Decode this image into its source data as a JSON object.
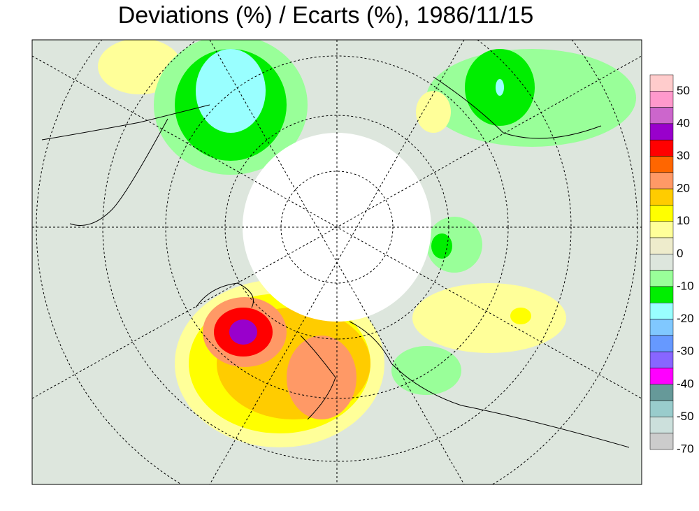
{
  "title": "Deviations (%) / Ecarts (%), 1986/11/15",
  "legend": {
    "labels": [
      "50",
      "40",
      "30",
      "20",
      "10",
      "0",
      "-10",
      "-20",
      "-30",
      "-40",
      "-50",
      "-70"
    ],
    "colors": [
      "#ffcccc",
      "#ff99cc",
      "#cc66cc",
      "#9900cc",
      "#ff0000",
      "#ff6600",
      "#ff9966",
      "#ffcc00",
      "#ffff00",
      "#ffff99",
      "#eeeccc",
      "#dde6dd",
      "#99ff99",
      "#00ee00",
      "#99ffff",
      "#80c8ff",
      "#6699ff",
      "#8866ff",
      "#ff00ff",
      "#669999",
      "#99cccc",
      "#cce0dc",
      "#cccccc"
    ]
  }
}
